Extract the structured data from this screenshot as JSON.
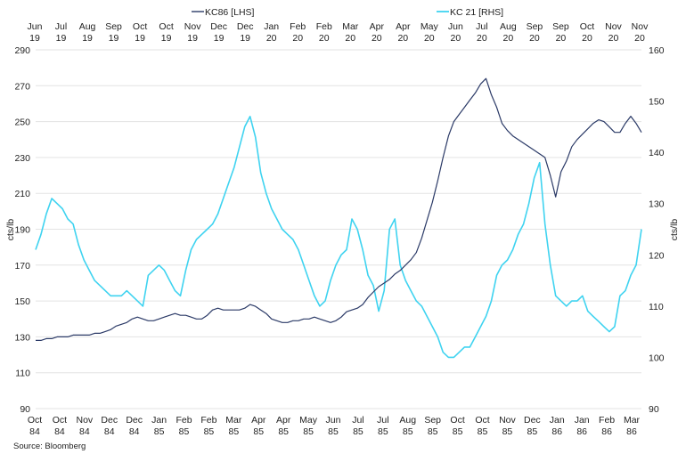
{
  "chart_data": {
    "type": "line",
    "source": "Source: Bloomberg",
    "legend_placement": "top-center",
    "grid": true,
    "colors": {
      "kc86": "#2b3a67",
      "kc21": "#3fd3f0",
      "grid": "#e3e3e3"
    },
    "y_left": {
      "label": "cts/lb",
      "min": 90,
      "max": 290,
      "ticks": [
        "90",
        "110",
        "130",
        "150",
        "170",
        "190",
        "210",
        "230",
        "250",
        "270",
        "290"
      ]
    },
    "y_right": {
      "label": "cts/lb",
      "min": 90,
      "max": 160,
      "ticks": [
        "90",
        "100",
        "110",
        "120",
        "130",
        "140",
        "150",
        "160"
      ]
    },
    "top_axis": {
      "months": [
        "Jun",
        "Jul",
        "Aug",
        "Sep",
        "Oct",
        "Oct",
        "Nov",
        "Dec",
        "Dec",
        "Jan",
        "Feb",
        "Feb",
        "Mar",
        "Apr",
        "Apr",
        "May",
        "Jun",
        "Jul",
        "Aug",
        "Sep",
        "Sep",
        "Oct",
        "Nov",
        "Nov"
      ],
      "years": [
        "19",
        "19",
        "19",
        "19",
        "19",
        "19",
        "19",
        "19",
        "19",
        "20",
        "20",
        "20",
        "20",
        "20",
        "20",
        "20",
        "20",
        "20",
        "20",
        "20",
        "20",
        "20",
        "20",
        "20"
      ]
    },
    "bottom_axis": {
      "months": [
        "Oct",
        "Oct",
        "Nov",
        "Dec",
        "Dec",
        "Jan",
        "Feb",
        "Feb",
        "Mar",
        "Apr",
        "Apr",
        "May",
        "Jun",
        "Jul",
        "Jul",
        "Aug",
        "Sep",
        "Oct",
        "Oct",
        "Nov",
        "Dec",
        "Jan",
        "Jan",
        "Feb",
        "Mar"
      ],
      "years": [
        "84",
        "84",
        "84",
        "84",
        "84",
        "85",
        "85",
        "85",
        "85",
        "85",
        "85",
        "85",
        "85",
        "85",
        "85",
        "85",
        "85",
        "85",
        "85",
        "85",
        "85",
        "86",
        "86",
        "86",
        "86"
      ]
    },
    "series": [
      {
        "name": "KC86 [LHS]",
        "axis": "left",
        "values": [
          128,
          128,
          129,
          129,
          130,
          130,
          130,
          131,
          131,
          131,
          131,
          132,
          132,
          133,
          134,
          136,
          137,
          138,
          140,
          141,
          140,
          139,
          139,
          140,
          141,
          142,
          143,
          142,
          142,
          141,
          140,
          140,
          142,
          145,
          146,
          145,
          145,
          145,
          145,
          146,
          148,
          147,
          145,
          143,
          140,
          139,
          138,
          138,
          139,
          139,
          140,
          140,
          141,
          140,
          139,
          138,
          139,
          141,
          144,
          145,
          146,
          148,
          152,
          155,
          158,
          160,
          162,
          165,
          167,
          170,
          173,
          177,
          185,
          195,
          205,
          217,
          230,
          242,
          250,
          254,
          258,
          262,
          266,
          271,
          274,
          265,
          258,
          249,
          245,
          242,
          240,
          238,
          236,
          234,
          232,
          230,
          220,
          208,
          222,
          228,
          236,
          240,
          243,
          246,
          249,
          251,
          250,
          247,
          244,
          244,
          249,
          253,
          249,
          244
        ]
      },
      {
        "name": "KC 21 [RHS]",
        "axis": "right",
        "values": [
          121,
          124,
          128,
          131,
          130,
          129,
          127,
          126,
          122,
          119,
          117,
          115,
          114,
          113,
          112,
          112,
          112,
          113,
          112,
          111,
          110,
          116,
          117,
          118,
          117,
          115,
          113,
          112,
          117,
          121,
          123,
          124,
          125,
          126,
          128,
          131,
          134,
          137,
          141,
          145,
          147,
          143,
          136,
          132,
          129,
          127,
          125,
          124,
          123,
          121,
          118,
          115,
          112,
          110,
          111,
          115,
          118,
          120,
          121,
          127,
          125,
          121,
          116,
          114,
          109,
          113,
          125,
          127,
          118,
          115,
          113,
          111,
          110,
          108,
          106,
          104,
          101,
          100,
          100,
          101,
          102,
          102,
          104,
          106,
          108,
          111,
          116,
          118,
          119,
          121,
          124,
          126,
          130,
          135,
          138,
          126,
          118,
          112,
          111,
          110,
          111,
          111,
          112,
          109,
          108,
          107,
          106,
          105,
          106,
          112,
          113,
          116,
          118,
          125
        ]
      }
    ]
  }
}
